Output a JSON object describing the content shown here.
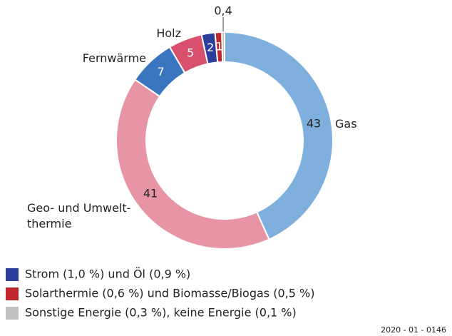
{
  "chart_data": {
    "type": "donut",
    "categories": [
      "Gas",
      "Geo- und Umwelt-\nthermie",
      "Fernwärme",
      "Holz",
      null,
      null,
      null
    ],
    "values": [
      43,
      41,
      7,
      5,
      2,
      1,
      0.4
    ],
    "value_labels": [
      "43",
      "41",
      "7",
      "5",
      "2",
      "1",
      "0,4"
    ],
    "colors": [
      "#7fb0dd",
      "#e795a5",
      "#3a76c0",
      "#d9506f",
      "#2b3f9a",
      "#c0272d",
      "#c0c0c0"
    ],
    "legend": [
      {
        "label": "Strom (1,0 %) und Öl (0,9 %)",
        "color": "#2b3f9a"
      },
      {
        "label": "Solarthermie (0,6 %) und Biomasse/Biogas (0,5 %)",
        "color": "#c0272d"
      },
      {
        "label": "Sonstige Energie (0,3 %), keine Energie (0,1 %)",
        "color": "#c0c0c0"
      }
    ],
    "footnote": "2020 - 01 - 0146"
  }
}
